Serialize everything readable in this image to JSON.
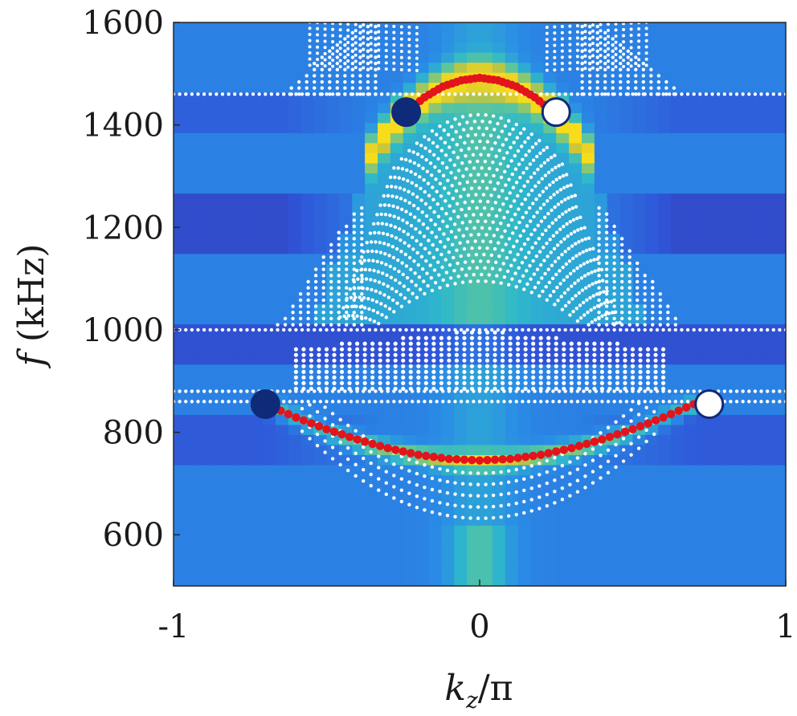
{
  "chart_data": {
    "type": "heatmap",
    "xlabel": "k_z/π",
    "xlabel_parts": {
      "main": "k",
      "sub": "z",
      "rest": "/π"
    },
    "ylabel": "f (kHz)",
    "ylabel_parts": {
      "italic": "f",
      "rest": " (kHz)"
    },
    "xlim": [
      -1,
      1
    ],
    "ylim": [
      500,
      1600
    ],
    "x_ticks": [
      -1,
      0,
      1
    ],
    "x_tick_labels": [
      "-1",
      "0",
      "1"
    ],
    "y_ticks": [
      600,
      800,
      1000,
      1200,
      1400,
      1600
    ],
    "y_tick_labels": [
      "600",
      "800",
      "1000",
      "1200",
      "1400",
      "1600"
    ],
    "grid": false,
    "colormap": "parula",
    "series": [
      {
        "kind": "edge-band",
        "color": "#e3141b",
        "points": [
          [
            -0.7,
            855
          ],
          [
            -0.6,
            829
          ],
          [
            -0.5,
            806
          ],
          [
            -0.4,
            786
          ],
          [
            -0.3,
            769
          ],
          [
            -0.2,
            756
          ],
          [
            -0.1,
            748
          ],
          [
            0.0,
            745
          ],
          [
            0.1,
            748
          ],
          [
            0.2,
            756
          ],
          [
            0.3,
            769
          ],
          [
            0.4,
            786
          ],
          [
            0.5,
            806
          ],
          [
            0.6,
            829
          ],
          [
            0.7,
            855
          ]
        ]
      },
      {
        "kind": "edge-band",
        "color": "#e3141b",
        "points": [
          [
            -0.24,
            1425
          ],
          [
            -0.18,
            1454
          ],
          [
            -0.12,
            1475
          ],
          [
            -0.06,
            1487
          ],
          [
            0.0,
            1492
          ],
          [
            0.06,
            1487
          ],
          [
            0.12,
            1475
          ],
          [
            0.18,
            1454
          ],
          [
            0.24,
            1425
          ]
        ]
      }
    ],
    "markers": [
      {
        "x": -0.7,
        "y": 855,
        "fill": "#0f2a78"
      },
      {
        "x": 0.75,
        "y": 855,
        "fill": "#ffffff"
      },
      {
        "x": -0.24,
        "y": 1425,
        "fill": "#0f2a78"
      },
      {
        "x": 0.25,
        "y": 1425,
        "fill": "#ffffff"
      }
    ],
    "white_band_lines": [
      1460,
      1000,
      880,
      860
    ],
    "colors": {
      "background_low": "#2d6fe6",
      "background_dark": "#3236a0",
      "high": "#f6d51e",
      "mid": "#41c0b0",
      "bulk_dots": "#ffffff",
      "edge_dots": "#e3141b",
      "marker_outline": "#0f2a78"
    }
  }
}
